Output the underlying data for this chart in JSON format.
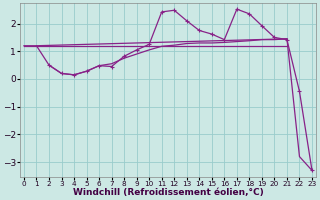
{
  "bg_color": "#cce8e4",
  "grid_color": "#99cccc",
  "line_color": "#882288",
  "xlabel": "Windchill (Refroidissement éolien,°C)",
  "xlabel_fontsize": 6.5,
  "ytick_fontsize": 6.5,
  "xtick_fontsize": 5.2,
  "xlim": [
    -0.3,
    23.3
  ],
  "ylim": [
    -3.55,
    2.75
  ],
  "yticks": [
    -3,
    -2,
    -1,
    0,
    1,
    2
  ],
  "xticks": [
    0,
    1,
    2,
    3,
    4,
    5,
    6,
    7,
    8,
    9,
    10,
    11,
    12,
    13,
    14,
    15,
    16,
    17,
    18,
    19,
    20,
    21,
    22,
    23
  ],
  "series": [
    {
      "x": [
        0,
        1,
        2,
        3,
        4,
        5,
        6,
        7,
        8,
        9,
        10,
        11,
        12,
        13,
        14,
        15,
        16,
        17,
        18,
        19,
        20,
        21
      ],
      "y": [
        1.2,
        1.2,
        1.2,
        1.2,
        1.2,
        1.2,
        1.2,
        1.2,
        1.2,
        1.2,
        1.2,
        1.2,
        1.2,
        1.2,
        1.2,
        1.2,
        1.2,
        1.2,
        1.2,
        1.2,
        1.2,
        1.2
      ],
      "has_marker": false,
      "lw": 0.9
    },
    {
      "x": [
        0,
        1,
        2,
        3,
        4,
        5,
        6,
        7,
        8,
        9,
        10,
        11,
        12,
        13,
        14,
        15,
        16,
        17,
        18,
        19,
        20,
        21
      ],
      "y": [
        1.2,
        1.2,
        0.5,
        0.2,
        0.15,
        0.28,
        0.48,
        0.55,
        0.75,
        0.9,
        1.05,
        1.18,
        1.22,
        1.28,
        1.3,
        1.3,
        1.32,
        1.35,
        1.38,
        1.42,
        1.42,
        1.45
      ],
      "has_marker": false,
      "lw": 0.9
    },
    {
      "x": [
        2,
        3,
        4,
        5,
        6,
        7,
        8,
        9,
        10,
        11,
        12,
        13,
        14,
        15,
        16,
        17,
        18,
        19,
        20,
        21,
        22,
        23
      ],
      "y": [
        0.5,
        0.2,
        0.15,
        0.28,
        0.48,
        0.45,
        0.82,
        1.05,
        1.25,
        2.42,
        2.48,
        2.1,
        1.75,
        1.62,
        1.42,
        2.52,
        2.35,
        1.92,
        1.5,
        1.42,
        -0.45,
        -3.3
      ],
      "has_marker": true,
      "lw": 0.9
    },
    {
      "x": [
        1,
        21,
        22,
        23
      ],
      "y": [
        1.2,
        1.45,
        -2.8,
        -3.3
      ],
      "has_marker": false,
      "lw": 0.9
    }
  ]
}
